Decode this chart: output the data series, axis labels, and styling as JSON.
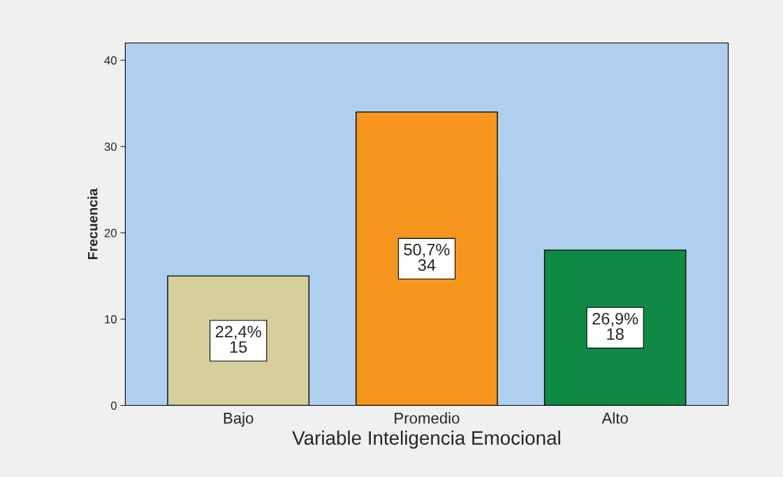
{
  "chart_data": {
    "type": "bar",
    "xlabel": "Variable Inteligencia Emocional",
    "ylabel": "Frecuencia",
    "categories": [
      "Bajo",
      "Promedio",
      "Alto"
    ],
    "values": [
      15,
      34,
      18
    ],
    "colors": [
      "#d4cf9b",
      "#f7961f",
      "#0f8a45"
    ],
    "value_labels": [
      "22,4%\n15",
      "50,7%\n34",
      "26,9%\n18"
    ],
    "ylim": [
      0,
      42
    ],
    "yticks": [
      0,
      10,
      20,
      30,
      40
    ],
    "grid": false,
    "legend": false
  }
}
